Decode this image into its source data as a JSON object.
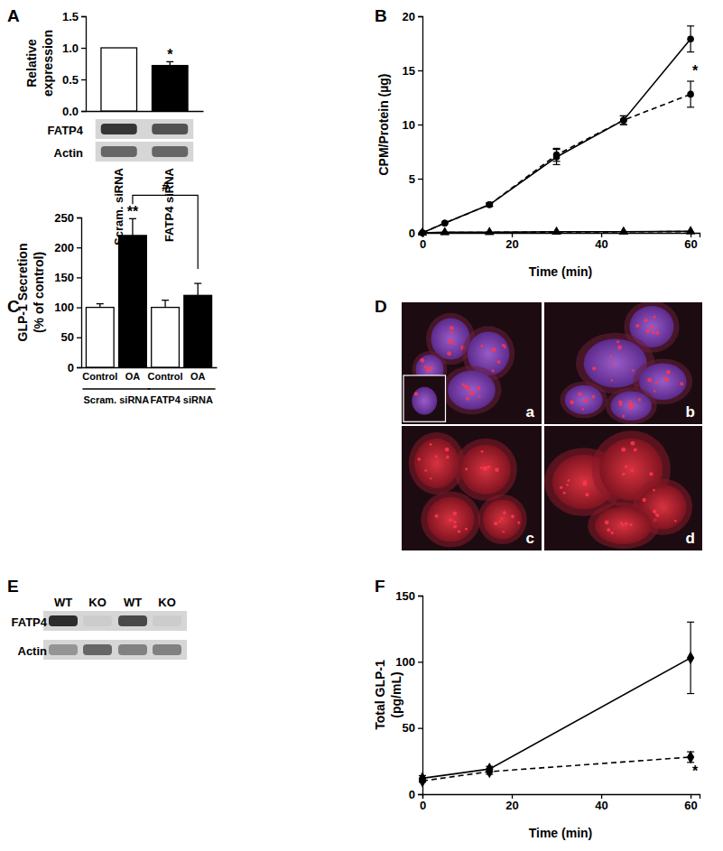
{
  "chart_data": [
    {
      "type": "bar",
      "title": "A",
      "categories": [
        "Scram. siRNA",
        "FATP4 siRNA"
      ],
      "values": [
        1,
        0.72
      ],
      "errors": [
        null,
        0.06
      ],
      "colors": [
        "#ffffff",
        "#000000"
      ],
      "ylim": [
        0,
        1.5
      ],
      "yticks": [
        {
          "value": 0,
          "label": "0.0"
        },
        {
          "value": 0.5,
          "label": "0.5"
        },
        {
          "value": 1,
          "label": "1.0"
        },
        {
          "value": 1.5,
          "label": "1.5"
        }
      ],
      "y_label": [
        "Relative",
        "expression"
      ],
      "annotations": [
        {
          "text": "*",
          "category": 1
        }
      ]
    },
    {
      "type": "line",
      "title": "B",
      "x": [
        0,
        5,
        15,
        30,
        45,
        60
      ],
      "series": [
        {
          "values": [
            0,
            0.9,
            2.6,
            7.0,
            10.4,
            17.9
          ],
          "errors": [
            null,
            null,
            0.15,
            0.7,
            0.4,
            1.2
          ],
          "color": "#000000",
          "marker": "circle",
          "line_style": "solid"
        },
        {
          "values": [
            0,
            0.9,
            2.6,
            7.2,
            10.4,
            12.8
          ],
          "errors": [
            null,
            null,
            0.15,
            0.6,
            0.4,
            1.2
          ],
          "color": "#000000",
          "marker": "circle",
          "line_style": "dashed"
        },
        {
          "values": [
            0,
            0.05,
            0.05,
            0.1,
            0.1,
            0.15
          ],
          "errors": [
            null,
            null,
            null,
            null,
            null,
            null
          ],
          "color": "#000000",
          "marker": "triangle",
          "line_style": "solid"
        },
        {
          "values": [
            0,
            0.03,
            0.05,
            0.08,
            0.1,
            0.12
          ],
          "errors": [
            null,
            null,
            null,
            null,
            null,
            null
          ],
          "color": "#000000",
          "marker": "triangle",
          "line_style": "dashed"
        }
      ],
      "xlim": [
        0,
        62
      ],
      "xticks": [
        0,
        20,
        40,
        60
      ],
      "ylim": [
        0,
        20
      ],
      "yticks": [
        0,
        5,
        10,
        15,
        20
      ],
      "x_label": "Time (min)",
      "y_label": [
        "CPM/Protein (µg)"
      ],
      "annotations": [
        {
          "text": "*",
          "x": 61,
          "y": 15
        }
      ]
    },
    {
      "type": "bar",
      "title": "C",
      "categories": [
        "Control",
        "OA",
        "Control",
        "OA"
      ],
      "groups": [
        "Scram. siRNA",
        "FATP4 siRNA"
      ],
      "values": [
        100,
        220,
        100,
        120
      ],
      "errors": [
        6,
        28,
        12,
        20
      ],
      "colors": [
        "#ffffff",
        "#000000",
        "#ffffff",
        "#000000"
      ],
      "ylim": [
        0,
        250
      ],
      "yticks": [
        0,
        50,
        100,
        150,
        200,
        250
      ],
      "y_label": [
        "GLP-1 Secretion",
        "(% of control)"
      ],
      "annotations": [
        {
          "text": "**",
          "category": 1
        },
        {
          "text": "#",
          "from": 1,
          "to": 3
        }
      ]
    },
    {
      "type": "line",
      "title": "F",
      "x": [
        0,
        15,
        60
      ],
      "series": [
        {
          "values": [
            12,
            19,
            103
          ],
          "errors": [
            2,
            2,
            27
          ],
          "color": "#000000",
          "marker": "diamond",
          "line_style": "solid"
        },
        {
          "values": [
            10,
            17,
            28
          ],
          "errors": [
            1,
            2,
            4
          ],
          "color": "#000000",
          "marker": "diamond",
          "line_style": "dashed"
        }
      ],
      "xlim": [
        0,
        62
      ],
      "xticks": [
        0,
        20,
        40,
        60
      ],
      "ylim": [
        0,
        150
      ],
      "yticks": [
        0,
        50,
        100,
        150
      ],
      "x_label": "Time (min)",
      "y_label": [
        "Total GLP-1",
        "(pg/mL)"
      ],
      "annotations": [
        {
          "text": "*",
          "x": 61,
          "y": 18
        }
      ]
    }
  ],
  "blots": [
    {
      "rows": [
        "FATP4",
        "Actin"
      ],
      "intensity": [
        [
          0.85,
          0.7
        ],
        [
          0.6,
          0.6
        ]
      ]
    },
    {
      "title": "E",
      "lanes": [
        "WT",
        "KO",
        "WT",
        "KO"
      ],
      "rows": [
        "FATP4",
        "Actin"
      ],
      "intensity": [
        [
          0.9,
          0.05,
          0.75,
          0.05
        ],
        [
          0.35,
          0.6,
          0.45,
          0.45
        ]
      ]
    }
  ],
  "images": {
    "title": "D",
    "labels": [
      "a",
      "b",
      "c",
      "d"
    ]
  }
}
